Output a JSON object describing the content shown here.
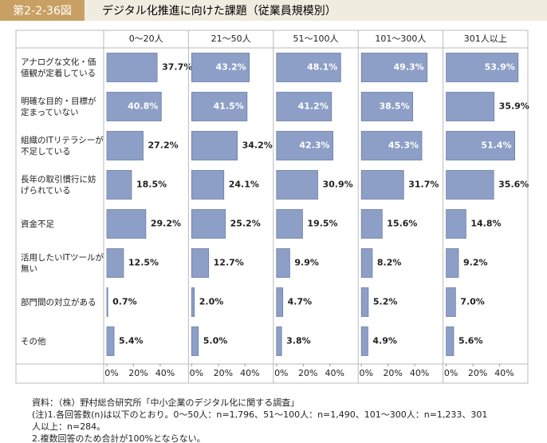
{
  "header": {
    "figure_id": "第2-2-36図",
    "title": "デジタル化推進に向けた課題（従業員規模別）"
  },
  "chart_data": {
    "type": "bar",
    "orientation": "horizontal",
    "layout": "panels",
    "categories": [
      "アナログな文化・価値観が定着している",
      "明確な目的・目標が定まっていない",
      "組織のITリテラシーが不足している",
      "長年の取引慣行に妨げられている",
      "資金不足",
      "活用したいITツールが無い",
      "部門間の対立がある",
      "その他"
    ],
    "series": [
      {
        "name": "0～20人",
        "color": "#8d9fc6",
        "values": [
          37.7,
          40.8,
          27.2,
          18.5,
          29.2,
          12.5,
          0.7,
          5.4
        ],
        "value_labels": [
          "37.7%",
          "40.8%",
          "27.2%",
          "18.5%",
          "29.2%",
          "12.5%",
          "0.7%",
          "5.4%"
        ]
      },
      {
        "name": "21～50人",
        "color": "#8d9fc6",
        "values": [
          43.2,
          41.5,
          34.2,
          24.1,
          25.2,
          12.7,
          2.0,
          5.0
        ],
        "value_labels": [
          "43.2%",
          "41.5%",
          "34.2%",
          "24.1%",
          "25.2%",
          "12.7%",
          "2.0%",
          "5.0%"
        ]
      },
      {
        "name": "51～100人",
        "color": "#8d9fc6",
        "values": [
          48.1,
          41.2,
          42.3,
          30.9,
          19.5,
          9.9,
          4.7,
          3.8
        ],
        "value_labels": [
          "48.1%",
          "41.2%",
          "42.3%",
          "30.9%",
          "19.5%",
          "9.9%",
          "4.7%",
          "3.8%"
        ]
      },
      {
        "name": "101～300人",
        "color": "#8d9fc6",
        "values": [
          49.3,
          38.5,
          45.3,
          31.7,
          15.6,
          8.2,
          5.2,
          4.9
        ],
        "value_labels": [
          "49.3%",
          "38.5%",
          "45.3%",
          "31.7%",
          "15.6%",
          "8.2%",
          "5.2%",
          "4.9%"
        ]
      },
      {
        "name": "301人以上",
        "color": "#8d9fc6",
        "values": [
          53.9,
          35.9,
          51.4,
          35.6,
          14.8,
          9.2,
          7.0,
          5.6
        ],
        "value_labels": [
          "53.9%",
          "35.9%",
          "51.4%",
          "35.6%",
          "14.8%",
          "9.2%",
          "7.0%",
          "5.6%"
        ]
      }
    ],
    "xlim": [
      0,
      60
    ],
    "xticks": [
      {
        "value": 0,
        "label": "0%"
      },
      {
        "value": 20,
        "label": "20%"
      },
      {
        "value": 40,
        "label": "40%"
      }
    ]
  },
  "notes": [
    "資料：（株）野村総合研究所「中小企業のデジタル化に関する調査」",
    "(注)1.各回答数(n)は以下のとおり。0～50人：n=1,796、51～100人：n=1,490、101～300人：n=1,233、301人以上：n=284。",
    "2.複数回答のため合計が100%とならない。"
  ]
}
